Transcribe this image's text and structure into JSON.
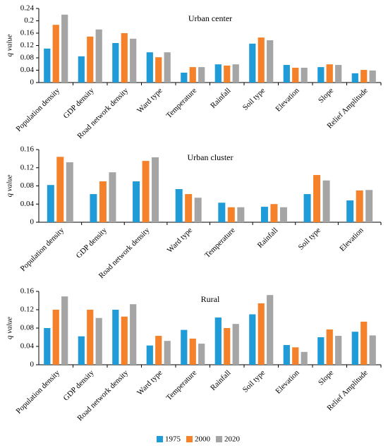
{
  "chart_data": [
    {
      "type": "bar",
      "title": "Urban center",
      "y_label": "q value",
      "categories": [
        "Population density",
        "GDP density",
        "Road network density",
        "Ward type",
        "Temperature",
        "Rainfall",
        "Soil type",
        "Elevation",
        "Slope",
        "Relief Amplitude"
      ],
      "series": [
        {
          "name": "1975",
          "color": "#1f9bd7",
          "values": [
            0.11,
            0.085,
            0.128,
            0.098,
            0.032,
            0.059,
            0.126,
            0.057,
            0.05,
            0.03
          ]
        },
        {
          "name": "2000",
          "color": "#f5822a",
          "values": [
            0.187,
            0.149,
            0.16,
            0.082,
            0.05,
            0.055,
            0.146,
            0.048,
            0.059,
            0.041
          ]
        },
        {
          "name": "2020",
          "color": "#a5a5a5",
          "values": [
            0.22,
            0.172,
            0.142,
            0.098,
            0.05,
            0.059,
            0.137,
            0.048,
            0.057,
            0.039
          ]
        }
      ],
      "ylim": [
        0,
        0.24
      ],
      "yticks": [
        0,
        0.04,
        0.08,
        0.12,
        0.16,
        0.2,
        0.24
      ]
    },
    {
      "type": "bar",
      "title": "Urban cluster",
      "y_label": "q value",
      "categories": [
        "Population density",
        "GDP density",
        "Road network density",
        "Ward type",
        "Temperature",
        "Rainfall",
        "Soil type",
        "Elevation"
      ],
      "series": [
        {
          "name": "1975",
          "color": "#1f9bd7",
          "values": [
            0.082,
            0.062,
            0.09,
            0.073,
            0.043,
            0.034,
            0.062,
            0.048
          ]
        },
        {
          "name": "2000",
          "color": "#f5822a",
          "values": [
            0.144,
            0.09,
            0.135,
            0.062,
            0.033,
            0.04,
            0.104,
            0.07
          ]
        },
        {
          "name": "2020",
          "color": "#a5a5a5",
          "values": [
            0.132,
            0.11,
            0.143,
            0.054,
            0.033,
            0.033,
            0.092,
            0.071
          ]
        }
      ],
      "ylim": [
        0,
        0.16
      ],
      "yticks": [
        0,
        0.04,
        0.08,
        0.12,
        0.16
      ]
    },
    {
      "type": "bar",
      "title": "Rural",
      "y_label": "q value",
      "categories": [
        "Population density",
        "GDP density",
        "Road network density",
        "Ward type",
        "Temperature",
        "Rainfall",
        "Soil type",
        "Elevation",
        "Slope",
        "Relief Amplitude"
      ],
      "series": [
        {
          "name": "1975",
          "color": "#1f9bd7",
          "values": [
            0.08,
            0.062,
            0.12,
            0.042,
            0.076,
            0.103,
            0.11,
            0.043,
            0.06,
            0.072
          ]
        },
        {
          "name": "2000",
          "color": "#f5822a",
          "values": [
            0.12,
            0.12,
            0.105,
            0.063,
            0.057,
            0.08,
            0.134,
            0.038,
            0.077,
            0.094
          ]
        },
        {
          "name": "2020",
          "color": "#a5a5a5",
          "values": [
            0.149,
            0.102,
            0.132,
            0.052,
            0.046,
            0.089,
            0.152,
            0.028,
            0.063,
            0.064
          ]
        }
      ],
      "ylim": [
        0,
        0.16
      ],
      "yticks": [
        0,
        0.04,
        0.08,
        0.12,
        0.16
      ]
    }
  ]
}
